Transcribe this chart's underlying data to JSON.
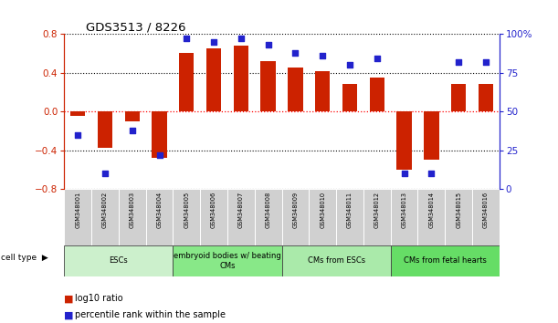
{
  "title": "GDS3513 / 8226",
  "samples": [
    "GSM348001",
    "GSM348002",
    "GSM348003",
    "GSM348004",
    "GSM348005",
    "GSM348006",
    "GSM348007",
    "GSM348008",
    "GSM348009",
    "GSM348010",
    "GSM348011",
    "GSM348012",
    "GSM348013",
    "GSM348014",
    "GSM348015",
    "GSM348016"
  ],
  "log10_ratio": [
    -0.05,
    -0.38,
    -0.1,
    -0.48,
    0.6,
    0.65,
    0.68,
    0.52,
    0.45,
    0.42,
    0.28,
    0.35,
    -0.6,
    -0.5,
    0.28,
    0.28
  ],
  "percentile_rank": [
    35,
    10,
    38,
    22,
    97,
    95,
    97,
    93,
    88,
    86,
    80,
    84,
    10,
    10,
    82,
    82
  ],
  "cell_type_groups": [
    {
      "label": "ESCs",
      "start": 0,
      "end": 3,
      "color": "#ccf0cc"
    },
    {
      "label": "embryoid bodies w/ beating\nCMs",
      "start": 4,
      "end": 7,
      "color": "#88e888"
    },
    {
      "label": "CMs from ESCs",
      "start": 8,
      "end": 11,
      "color": "#aaeaaa"
    },
    {
      "label": "CMs from fetal hearts",
      "start": 12,
      "end": 15,
      "color": "#66dd66"
    }
  ],
  "bar_color": "#cc2200",
  "dot_color": "#2222cc",
  "ylim_left": [
    -0.8,
    0.8
  ],
  "ylim_right": [
    0,
    100
  ],
  "yticks_left": [
    -0.8,
    -0.4,
    0,
    0.4,
    0.8
  ],
  "yticks_right": [
    0,
    25,
    50,
    75,
    100
  ],
  "background_color": "#ffffff",
  "bar_width": 0.55
}
